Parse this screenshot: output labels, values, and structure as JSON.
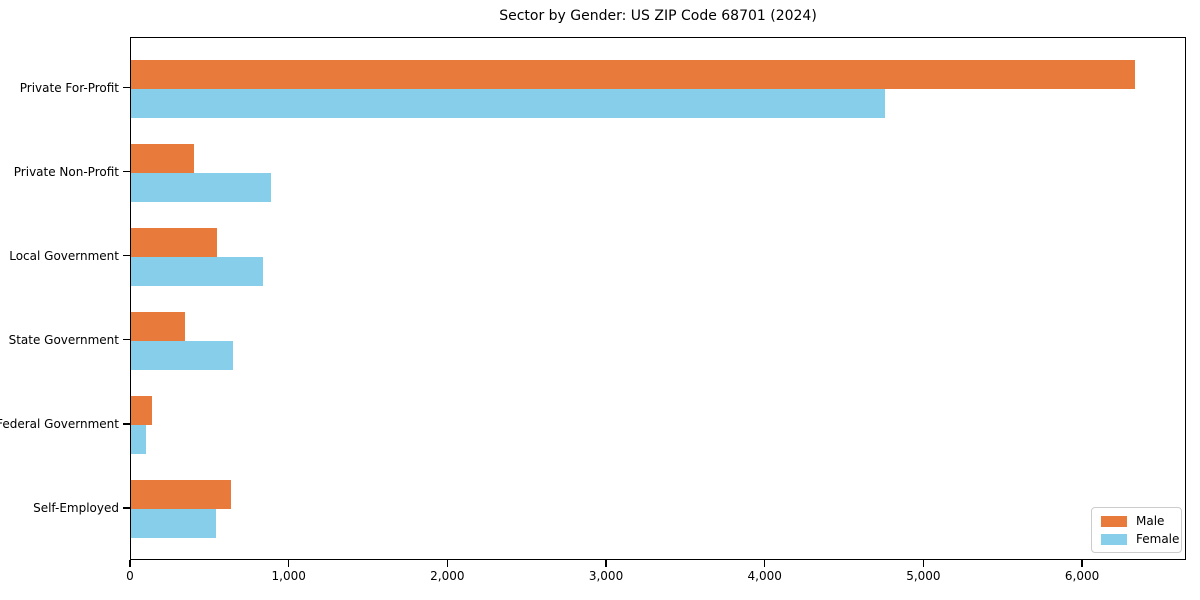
{
  "window": {
    "title": "Sector by Gender: US ZIP Code 68701 (2024)"
  },
  "chart_data": {
    "type": "bar",
    "orientation": "horizontal",
    "title": "Sector by Gender: US ZIP Code 68701 (2024)",
    "xlabel": "",
    "ylabel": "",
    "categories": [
      "Private For-Profit",
      "Private Non-Profit",
      "Local Government",
      "State Government",
      "Federal Government",
      "Self-Employed"
    ],
    "series": [
      {
        "name": "Male",
        "color": "#E87A3C",
        "values": [
          6330,
          395,
          540,
          340,
          130,
          630
        ]
      },
      {
        "name": "Female",
        "color": "#87CEEB",
        "values": [
          4750,
          885,
          830,
          640,
          95,
          535
        ]
      }
    ],
    "xlim": [
      0,
      6655
    ],
    "xticks": [
      0,
      1000,
      2000,
      3000,
      4000,
      5000,
      6000
    ],
    "xtick_labels": [
      "0",
      "1,000",
      "2,000",
      "3,000",
      "4,000",
      "5,000",
      "6,000"
    ],
    "grid": false,
    "legend_position": "lower right",
    "background_color": "#ffffff",
    "spine_color": "#000000"
  }
}
